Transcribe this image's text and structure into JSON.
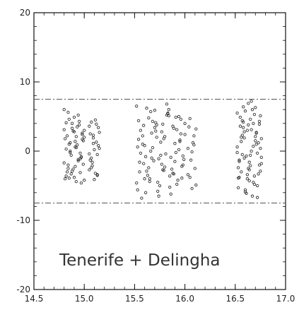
{
  "chart_data": {
    "type": "scatter",
    "title": "",
    "xlabel": "",
    "ylabel": "",
    "xlim": [
      14.5,
      17.0
    ],
    "ylim": [
      -20,
      20
    ],
    "grid": false,
    "x_ticks": [
      "14.5",
      "15.0",
      "15.5",
      "16.0",
      "16.5",
      "17.0"
    ],
    "y_ticks": [
      "20",
      "10",
      "0",
      "-10",
      "-20"
    ],
    "annotation": "Tenerife + Delingha",
    "reference_lines": [
      7.5,
      -7.5
    ],
    "marker": "open-circle",
    "point_color": "#333333",
    "series": [
      {
        "x": [
          14.8,
          14.82,
          14.84,
          14.86,
          14.88,
          14.9,
          14.92,
          14.94,
          14.96,
          14.98,
          15.0,
          14.81,
          14.83,
          14.85,
          14.87,
          14.89,
          14.91,
          14.93,
          14.95,
          14.97,
          14.99,
          14.8,
          14.84,
          14.88,
          14.92,
          14.96,
          15.0,
          14.82,
          14.86,
          14.9,
          14.94,
          14.98,
          14.81,
          14.85,
          14.89,
          14.93,
          14.97,
          14.83,
          14.87,
          14.91,
          14.95,
          14.99,
          14.8,
          14.86,
          14.92,
          14.98,
          14.84,
          14.9,
          14.96,
          14.82,
          14.88,
          14.94,
          15.0,
          14.85,
          14.91,
          14.97,
          15.05,
          15.07,
          15.09,
          15.11,
          15.13,
          15.15,
          15.06,
          15.08,
          15.1,
          15.12,
          15.14,
          15.05,
          15.09,
          15.13,
          15.07,
          15.11,
          15.15,
          15.06,
          15.1,
          15.14,
          15.08,
          15.12,
          15.05,
          15.13,
          15.09,
          15.07
        ],
        "y": [
          6.0,
          4.1,
          -2.5,
          1.2,
          3.3,
          -3.8,
          0.5,
          5.2,
          -1.1,
          2.4,
          -4.2,
          1.8,
          -3.0,
          4.6,
          -0.6,
          2.9,
          -2.2,
          0.9,
          3.8,
          -4.6,
          1.5,
          -1.7,
          5.6,
          -2.9,
          2.1,
          -0.3,
          3.0,
          -3.6,
          0.0,
          4.9,
          -1.4,
          2.6,
          -4.0,
          1.0,
          -2.6,
          3.5,
          -0.9,
          2.2,
          -3.3,
          0.6,
          4.3,
          -1.9,
          3.1,
          -0.2,
          -4.4,
          1.7,
          -2.0,
          2.8,
          -3.1,
          0.3,
          4.0,
          -1.2,
          2.0,
          -3.9,
          1.4,
          -0.8,
          3.6,
          -2.4,
          1.1,
          4.5,
          -3.5,
          0.4,
          2.5,
          -1.6,
          -4.1,
          3.9,
          0.8,
          -2.7,
          1.9,
          -0.5,
          4.2,
          -3.2,
          2.7,
          -1.3,
          0.2,
          3.4,
          -2.1,
          1.3,
          -0.4,
          -3.4,
          2.3,
          -1.0
        ]
      },
      {
        "x": [
          15.52,
          15.55,
          15.58,
          15.61,
          15.64,
          15.67,
          15.7,
          15.73,
          15.76,
          15.79,
          15.82,
          15.85,
          15.88,
          15.91,
          15.94,
          15.97,
          16.0,
          15.53,
          15.56,
          15.59,
          15.62,
          15.65,
          15.68,
          15.71,
          15.74,
          15.77,
          15.8,
          15.83,
          15.86,
          15.89,
          15.92,
          15.95,
          15.98,
          15.54,
          15.57,
          15.6,
          15.63,
          15.66,
          15.69,
          15.72,
          15.75,
          15.78,
          15.81,
          15.84,
          15.87,
          15.9,
          15.93,
          15.96,
          15.99,
          15.52,
          15.58,
          15.64,
          15.7,
          15.76,
          15.82,
          15.88,
          15.94,
          16.0,
          15.55,
          15.61,
          15.67,
          15.73,
          15.79,
          15.85,
          15.91,
          15.97,
          15.53,
          15.59,
          15.65,
          15.71,
          15.77,
          15.83,
          15.89,
          15.95,
          15.56,
          15.62,
          15.68,
          15.74,
          15.8,
          15.86,
          15.92,
          15.98,
          15.54,
          15.6,
          15.66,
          15.72,
          15.78,
          15.84,
          15.9,
          15.96,
          16.03,
          16.05,
          16.07,
          16.09,
          16.11,
          16.04,
          16.06,
          16.08,
          16.1,
          16.03,
          16.07,
          16.11,
          16.05,
          16.09
        ],
        "y": [
          6.5,
          -3.0,
          2.2,
          -6.0,
          4.8,
          -1.0,
          5.9,
          -4.5,
          1.3,
          -2.8,
          6.8,
          -5.2,
          3.6,
          -0.2,
          5.0,
          -3.9,
          2.4,
          -5.6,
          3.0,
          -1.8,
          6.2,
          -4.0,
          0.5,
          4.1,
          -6.5,
          2.8,
          -2.3,
          5.4,
          -0.9,
          3.3,
          -4.8,
          1.6,
          -2.0,
          4.4,
          -6.8,
          0.8,
          -3.5,
          5.7,
          -1.4,
          2.0,
          -5.0,
          3.9,
          -0.4,
          6.0,
          -2.6,
          1.1,
          -4.2,
          4.6,
          -1.2,
          -4.6,
          1.0,
          -2.4,
          3.4,
          -0.6,
          5.2,
          -3.2,
          0.2,
          4.0,
          -1.6,
          -0.8,
          2.6,
          -5.8,
          1.8,
          -3.6,
          4.9,
          -2.2,
          0.6,
          3.7,
          -4.4,
          2.9,
          -1.9,
          5.5,
          -3.3,
          1.4,
          -0.3,
          -2.9,
          4.3,
          -1.1,
          2.1,
          -6.2,
          3.1,
          -0.7,
          1.7,
          -4.0,
          0.0,
          3.8,
          -2.7,
          5.1,
          -1.5,
          2.5,
          -3.4,
          4.7,
          -0.1,
          2.2,
          -4.9,
          3.5,
          -1.3,
          1.2,
          -2.5,
          0.4,
          -5.4,
          3.2,
          -3.8,
          0.9
        ]
      },
      {
        "x": [
          16.52,
          16.54,
          16.56,
          16.58,
          16.6,
          16.62,
          16.64,
          16.66,
          16.68,
          16.7,
          16.72,
          16.74,
          16.76,
          16.53,
          16.55,
          16.57,
          16.59,
          16.61,
          16.63,
          16.65,
          16.67,
          16.69,
          16.71,
          16.73,
          16.75,
          16.52,
          16.56,
          16.6,
          16.64,
          16.68,
          16.72,
          16.76,
          16.54,
          16.58,
          16.62,
          16.66,
          16.7,
          16.74,
          16.53,
          16.57,
          16.61,
          16.65,
          16.69,
          16.73,
          16.55,
          16.59,
          16.63,
          16.67,
          16.71,
          16.75,
          16.52,
          16.58,
          16.64,
          16.7,
          16.76,
          16.56,
          16.62,
          16.68,
          16.74,
          16.54,
          16.6,
          16.66,
          16.72,
          16.57,
          16.63,
          16.69,
          16.75,
          16.53,
          16.59,
          16.65,
          16.71
        ],
        "y": [
          5.5,
          -3.8,
          1.4,
          6.4,
          -5.6,
          3.0,
          -1.6,
          7.2,
          -4.5,
          2.1,
          -6.7,
          4.3,
          -0.9,
          -2.4,
          4.9,
          -0.5,
          2.8,
          -6.1,
          3.8,
          -2.1,
          6.0,
          -4.8,
          1.0,
          -3.3,
          5.1,
          0.6,
          -3.0,
          5.8,
          -2.7,
          4.0,
          -5.0,
          1.8,
          -1.3,
          3.4,
          -4.0,
          0.0,
          6.3,
          -2.0,
          -5.3,
          2.3,
          -0.7,
          4.6,
          -3.6,
          1.2,
          3.6,
          -1.0,
          6.9,
          -6.5,
          2.7,
          -2.9,
          -0.2,
          4.2,
          -4.3,
          1.5,
          -1.8,
          2.0,
          -3.4,
          0.7,
          3.9,
          -1.5,
          -5.9,
          3.1,
          -0.3,
          4.4,
          -2.5,
          5.3,
          0.4,
          -3.9,
          1.9,
          -0.6,
          2.6
        ]
      }
    ]
  }
}
